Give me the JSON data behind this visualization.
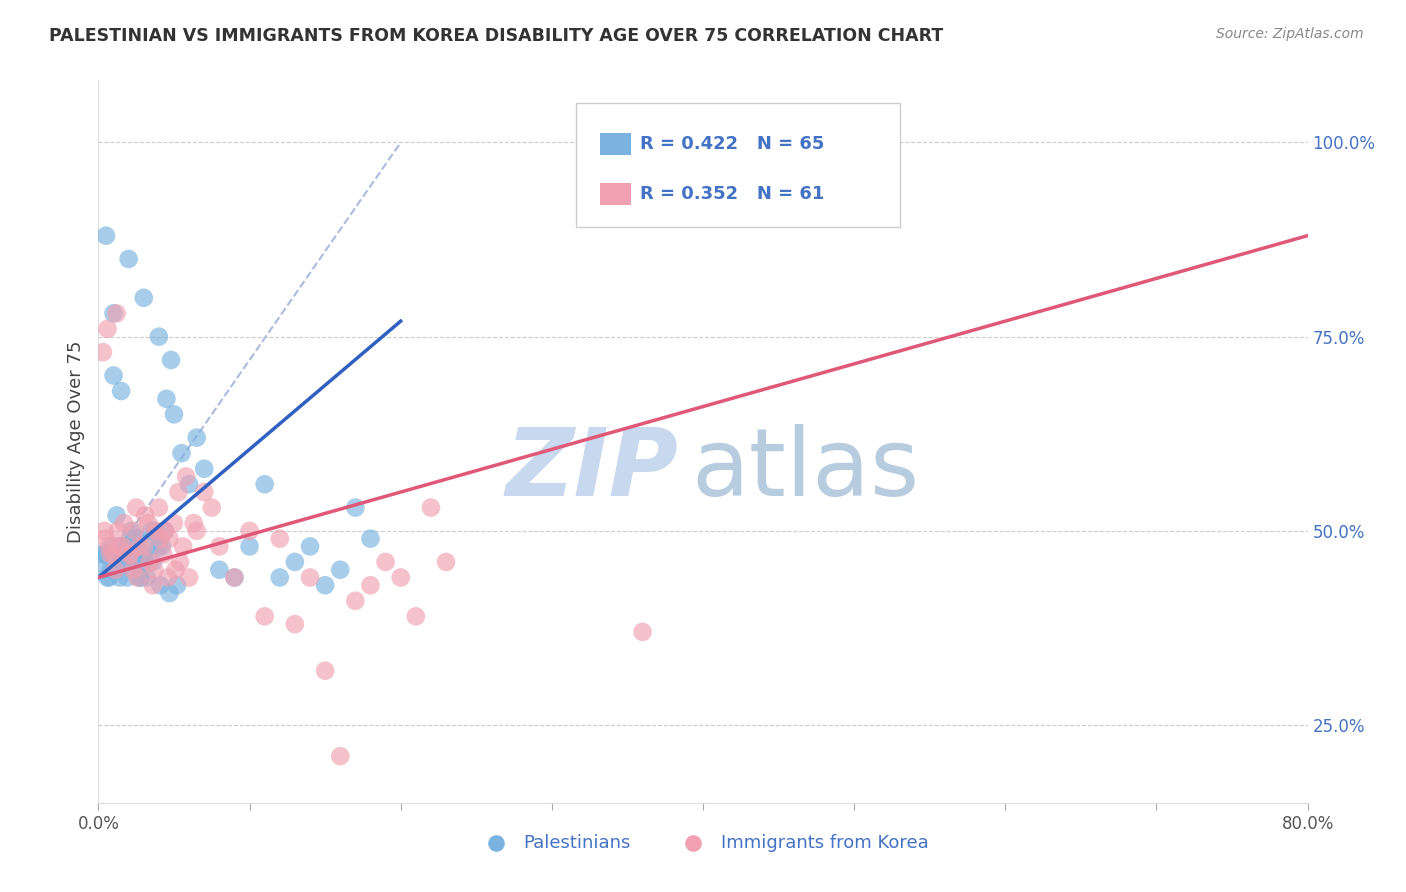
{
  "title": "PALESTINIAN VS IMMIGRANTS FROM KOREA DISABILITY AGE OVER 75 CORRELATION CHART",
  "source": "Source: ZipAtlas.com",
  "ylabel": "Disability Age Over 75",
  "xlim": [
    0,
    80
  ],
  "ylim": [
    15,
    108
  ],
  "x_ticks": [
    0,
    10,
    20,
    30,
    40,
    50,
    60,
    70,
    80
  ],
  "x_tick_labels": [
    "0.0%",
    "",
    "",
    "",
    "",
    "",
    "",
    "",
    "80.0%"
  ],
  "y_ticks_right": [
    25,
    50,
    75,
    100
  ],
  "y_tick_labels_right": [
    "25.0%",
    "50.0%",
    "75.0%",
    "100.0%"
  ],
  "series1_label": "Palestinians",
  "series1_color": "#7ab3e0",
  "series1_R": 0.422,
  "series1_N": 65,
  "series2_label": "Immigrants from Korea",
  "series2_color": "#f0a0b0",
  "series2_R": 0.352,
  "series2_N": 61,
  "watermark_zip": "ZIP",
  "watermark_atlas": "atlas",
  "watermark_color_zip": "#c8d8ee",
  "watermark_color_atlas": "#b8cce0",
  "blue_line_x": [
    0,
    20
  ],
  "blue_line_y": [
    44,
    77
  ],
  "pink_line_x": [
    0,
    80
  ],
  "pink_line_y": [
    44,
    88
  ],
  "dash_line_x": [
    0,
    20
  ],
  "dash_line_y": [
    44,
    100
  ],
  "pal_x": [
    1.5,
    2.0,
    2.5,
    1.0,
    1.2,
    0.5,
    0.8,
    1.8,
    2.2,
    3.0,
    2.8,
    3.5,
    4.0,
    0.3,
    0.6,
    0.9,
    1.1,
    1.4,
    1.7,
    2.1,
    2.4,
    2.7,
    3.1,
    3.4,
    3.7,
    4.1,
    4.5,
    5.0,
    4.8,
    0.4,
    0.7,
    1.3,
    1.6,
    1.9,
    2.3,
    2.6,
    2.9,
    3.2,
    3.6,
    4.2,
    4.4,
    4.7,
    5.2,
    5.5,
    6.0,
    6.5,
    7.0,
    8.0,
    9.0,
    10.0,
    11.0,
    12.0,
    13.0,
    14.0,
    15.0,
    16.0,
    17.0,
    18.0,
    0.2,
    0.5,
    1.0,
    1.5,
    2.0,
    3.0,
    4.0
  ],
  "pal_y": [
    48,
    46,
    49,
    70,
    52,
    47,
    45,
    46,
    50,
    47,
    44,
    50,
    48,
    45,
    44,
    48,
    46,
    44,
    47,
    49,
    46,
    44,
    46,
    48,
    50,
    43,
    67,
    65,
    72,
    47,
    44,
    48,
    46,
    44,
    47,
    49,
    46,
    44,
    46,
    48,
    50,
    42,
    43,
    60,
    56,
    62,
    58,
    45,
    44,
    48,
    56,
    44,
    46,
    48,
    43,
    45,
    53,
    49,
    47,
    88,
    78,
    68,
    85,
    80,
    75
  ],
  "kor_x": [
    0.4,
    0.7,
    1.0,
    1.3,
    1.6,
    2.0,
    2.3,
    2.6,
    3.0,
    3.3,
    3.6,
    4.0,
    4.3,
    4.6,
    5.0,
    5.3,
    5.6,
    6.0,
    6.3,
    0.5,
    0.8,
    1.1,
    1.4,
    1.7,
    2.1,
    2.4,
    2.7,
    3.1,
    3.4,
    3.7,
    4.1,
    4.4,
    4.7,
    5.1,
    5.4,
    6.5,
    7.0,
    7.5,
    8.0,
    9.0,
    10.0,
    11.0,
    12.0,
    13.0,
    14.0,
    15.0,
    16.0,
    17.0,
    18.0,
    19.0,
    20.0,
    21.0,
    22.0,
    23.0,
    36.0,
    0.3,
    0.6,
    1.2,
    2.5,
    3.8,
    5.8
  ],
  "kor_y": [
    50,
    48,
    47,
    50,
    48,
    47,
    45,
    44,
    48,
    51,
    43,
    53,
    47,
    44,
    51,
    55,
    48,
    44,
    51,
    49,
    47,
    45,
    48,
    51,
    47,
    50,
    48,
    52,
    46,
    45,
    49,
    50,
    49,
    45,
    46,
    50,
    55,
    53,
    48,
    44,
    50,
    39,
    49,
    38,
    44,
    32,
    21,
    41,
    43,
    46,
    44,
    39,
    53,
    46,
    37,
    73,
    76,
    78,
    53,
    50,
    57
  ]
}
